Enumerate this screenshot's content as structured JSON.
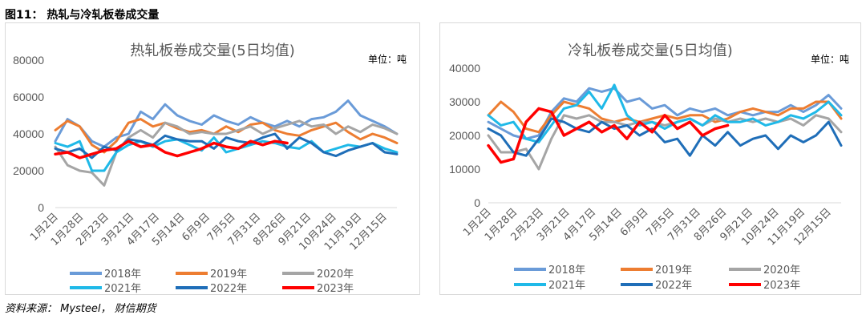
{
  "figure": {
    "title": "图11： 热轧与冷轧板卷成交量",
    "source": "资料来源： Mysteel， 财信期货"
  },
  "chart_data": [
    {
      "type": "line",
      "title": "热轧板卷成交量(5日均值)",
      "unit_label": "单位：吨",
      "ylim": [
        0,
        80000
      ],
      "yticks": [
        "0",
        "20000",
        "40000",
        "60000",
        "80000"
      ],
      "x_tick_labels": [
        "1月2日",
        "1月28日",
        "2月23日",
        "3月21日",
        "4月17日",
        "5月14日",
        "6月9日",
        "7月5日",
        "7月31日",
        "8月26日",
        "9月21日",
        "10月24日",
        "11月19日",
        "12月15日"
      ],
      "grid": false,
      "legend_position": "bottom",
      "series": [
        {
          "name": "2018年",
          "color": "#6a9bd8",
          "width": 3,
          "values": [
            36000,
            48000,
            44000,
            36000,
            33000,
            38000,
            40000,
            52000,
            48000,
            56000,
            50000,
            47000,
            45000,
            50000,
            47000,
            45000,
            49000,
            46000,
            44000,
            47000,
            44000,
            48000,
            49000,
            52000,
            58000,
            50000,
            47000,
            44000,
            40000
          ]
        },
        {
          "name": "2019年",
          "color": "#ed7d31",
          "width": 3,
          "values": [
            42000,
            47000,
            44000,
            34000,
            30000,
            36000,
            46000,
            48000,
            44000,
            46000,
            43000,
            41000,
            42000,
            40000,
            44000,
            41000,
            45000,
            46000,
            42000,
            40000,
            39000,
            42000,
            44000,
            46000,
            41000,
            37000,
            40000,
            38000,
            35000
          ]
        },
        {
          "name": "2020年",
          "color": "#a5a5a5",
          "width": 3,
          "values": [
            33000,
            23000,
            20000,
            19000,
            12000,
            30000,
            38000,
            42000,
            38000,
            46000,
            44000,
            40000,
            41000,
            40000,
            40000,
            42000,
            44000,
            40000,
            43000,
            45000,
            47000,
            44000,
            45000,
            40000,
            44000,
            41000,
            45000,
            43000,
            40000
          ]
        },
        {
          "name": "2021年",
          "color": "#1fb9e8",
          "width": 3,
          "values": [
            35000,
            33000,
            36000,
            20000,
            20000,
            30000,
            34000,
            36000,
            33000,
            36000,
            37000,
            34000,
            31000,
            38000,
            30000,
            32000,
            34000,
            36000,
            35000,
            33000,
            32000,
            36000,
            30000,
            32000,
            34000,
            33000,
            35000,
            32000,
            30000
          ]
        },
        {
          "name": "2022年",
          "color": "#1f6eb8",
          "width": 3,
          "values": [
            32000,
            30000,
            32000,
            27000,
            33000,
            31000,
            37000,
            36000,
            34000,
            39000,
            37000,
            36000,
            36000,
            32000,
            38000,
            36000,
            35000,
            38000,
            40000,
            32000,
            38000,
            35000,
            30000,
            28000,
            31000,
            33000,
            35000,
            30000,
            29000
          ]
        },
        {
          "name": "2023年",
          "color": "#ff0000",
          "width": 3.5,
          "values": [
            29000,
            30000,
            27000,
            29000,
            31000,
            32000,
            36000,
            33000,
            34000,
            30000,
            28000,
            30000,
            32000,
            35000,
            33000,
            32000,
            36000,
            34000,
            36000,
            35000
          ]
        }
      ]
    },
    {
      "type": "line",
      "title": "冷轧板卷成交量(5日均值)",
      "unit_label": "单位：吨",
      "ylim": [
        0,
        40000
      ],
      "yticks": [
        "0",
        "10000",
        "20000",
        "30000",
        "40000"
      ],
      "x_tick_labels": [
        "1月2日",
        "1月28日",
        "2月23日",
        "3月21日",
        "4月17日",
        "5月14日",
        "6月9日",
        "7月5日",
        "7月31日",
        "8月26日",
        "9月21日",
        "10月24日",
        "11月19日",
        "12月15日"
      ],
      "grid": false,
      "legend_position": "bottom",
      "series": [
        {
          "name": "2018年",
          "color": "#6a9bd8",
          "width": 3,
          "values": [
            24000,
            22000,
            20000,
            19000,
            20000,
            27000,
            31000,
            30000,
            34000,
            33000,
            34000,
            30000,
            31000,
            28000,
            29000,
            26000,
            28000,
            27000,
            28000,
            26000,
            27000,
            26000,
            27000,
            27000,
            29000,
            27000,
            29000,
            32000,
            28000
          ]
        },
        {
          "name": "2019年",
          "color": "#ed7d31",
          "width": 3,
          "values": [
            26000,
            30000,
            27000,
            22000,
            21000,
            26000,
            30000,
            29000,
            28000,
            25000,
            24000,
            25000,
            24000,
            25000,
            26000,
            25000,
            26000,
            26000,
            24000,
            25000,
            27000,
            28000,
            27000,
            26000,
            28000,
            28000,
            30000,
            30000,
            25000
          ]
        },
        {
          "name": "2020年",
          "color": "#a5a5a5",
          "width": 3,
          "values": [
            20000,
            15000,
            15000,
            16000,
            10000,
            19000,
            26000,
            25000,
            26000,
            24000,
            24000,
            23000,
            24000,
            24000,
            23000,
            24000,
            25000,
            23000,
            25000,
            24000,
            25000,
            24000,
            25000,
            24000,
            25000,
            23000,
            26000,
            25000,
            21000
          ]
        },
        {
          "name": "2021年",
          "color": "#1fb9e8",
          "width": 3,
          "values": [
            26000,
            23000,
            24000,
            19000,
            18000,
            23000,
            28000,
            29000,
            33000,
            28000,
            35000,
            26000,
            23000,
            24000,
            22000,
            24000,
            25000,
            23000,
            26000,
            24000,
            24000,
            25000,
            23000,
            24000,
            26000,
            25000,
            27000,
            30000,
            26000
          ]
        },
        {
          "name": "2022年",
          "color": "#1f6eb8",
          "width": 3,
          "values": [
            22000,
            20000,
            15000,
            14000,
            19000,
            25000,
            24000,
            22000,
            21000,
            24000,
            22000,
            23000,
            20000,
            22000,
            18000,
            19000,
            14000,
            20000,
            17000,
            21000,
            17000,
            19000,
            20000,
            16000,
            20000,
            18000,
            20000,
            24000,
            17000
          ]
        },
        {
          "name": "2023年",
          "color": "#ff0000",
          "width": 3.5,
          "values": [
            17000,
            12000,
            13000,
            24000,
            28000,
            27000,
            20000,
            22000,
            24000,
            21000,
            23000,
            19000,
            24000,
            21000,
            26000,
            22000,
            24000,
            20000,
            22000,
            23000
          ]
        }
      ]
    }
  ]
}
